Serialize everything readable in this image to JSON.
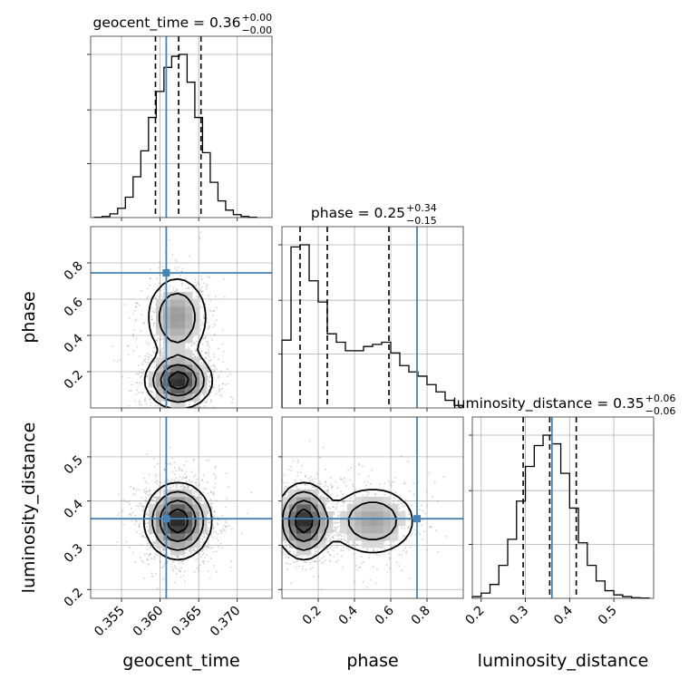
{
  "chart_data": {
    "type": "corner",
    "parameters": [
      "geocent_time",
      "phase",
      "luminosity_distance"
    ],
    "truths": {
      "geocent_time": 0.3608,
      "phase": 0.745,
      "luminosity_distance": 0.36
    },
    "colors": {
      "truth": "#4682b4",
      "line": "#000000",
      "grid": "#b0b0b0",
      "density_dark": "#111111"
    },
    "grid": true,
    "titles": [
      {
        "param": "geocent_time",
        "text": "geocent_time = 0.36",
        "sup": "+0.00",
        "sub": "−0.00"
      },
      {
        "param": "phase",
        "text": "phase = 0.25",
        "sup": "+0.34",
        "sub": "−0.15"
      },
      {
        "param": "luminosity_distance",
        "text": "luminosity_distance = 0.35",
        "sup": "+0.06",
        "sub": "−0.06"
      }
    ],
    "axes": {
      "geocent_time": {
        "label": "geocent_time",
        "range": [
          0.351,
          0.3745
        ],
        "ticks": [
          0.355,
          0.36,
          0.365,
          0.37
        ],
        "tick_labels": [
          "0.355",
          "0.360",
          "0.365",
          "0.370"
        ]
      },
      "phase": {
        "label": "phase",
        "range": [
          0.0,
          1.0
        ],
        "ticks": [
          0.2,
          0.4,
          0.6,
          0.8
        ],
        "tick_labels": [
          "0.2",
          "0.4",
          "0.6",
          "0.8"
        ]
      },
      "luminosity_distance": {
        "label": "luminosity_distance",
        "range": [
          0.18,
          0.59
        ],
        "ticks": [
          0.2,
          0.3,
          0.4,
          0.5
        ],
        "tick_labels": [
          "0.2",
          "0.3",
          "0.4",
          "0.5"
        ]
      }
    },
    "marginals": {
      "geocent_time": {
        "bin_edges": [
          0.3515,
          0.3525,
          0.3535,
          0.3545,
          0.3555,
          0.3565,
          0.3575,
          0.3585,
          0.3595,
          0.3605,
          0.3615,
          0.3625,
          0.3635,
          0.3645,
          0.3655,
          0.3665,
          0.3675,
          0.3685,
          0.3695,
          0.3705,
          0.3715,
          0.3725
        ],
        "counts": [
          1,
          3,
          10,
          25,
          55,
          110,
          180,
          270,
          340,
          405,
          435,
          440,
          365,
          270,
          175,
          95,
          45,
          20,
          8,
          3,
          1
        ],
        "quantiles": [
          0.3594,
          0.3624,
          0.3653
        ]
      },
      "phase": {
        "bin_edges": [
          0.0,
          0.05,
          0.1,
          0.15,
          0.2,
          0.25,
          0.3,
          0.35,
          0.4,
          0.45,
          0.5,
          0.55,
          0.6,
          0.65,
          0.7,
          0.75,
          0.8,
          0.85,
          0.9,
          0.95,
          1.0
        ],
        "counts": [
          160,
          380,
          385,
          300,
          250,
          175,
          155,
          135,
          135,
          145,
          150,
          155,
          130,
          100,
          85,
          75,
          55,
          38,
          18,
          6
        ],
        "quantiles": [
          0.1,
          0.25,
          0.59
        ]
      },
      "luminosity_distance": {
        "bin_edges": [
          0.18,
          0.2,
          0.22,
          0.24,
          0.26,
          0.28,
          0.3,
          0.32,
          0.34,
          0.36,
          0.38,
          0.4,
          0.42,
          0.44,
          0.46,
          0.48,
          0.5,
          0.52,
          0.54,
          0.56,
          0.58
        ],
        "counts": [
          5,
          15,
          40,
          95,
          170,
          280,
          380,
          440,
          470,
          445,
          360,
          260,
          160,
          95,
          50,
          22,
          10,
          5,
          2,
          1
        ],
        "quantiles": [
          0.295,
          0.355,
          0.415
        ]
      }
    },
    "joint": [
      {
        "x": "geocent_time",
        "y": "phase",
        "modes": [
          {
            "x": 0.3624,
            "y": 0.15,
            "sx": 0.0021,
            "sy": 0.075,
            "w": 1.0
          },
          {
            "x": 0.3622,
            "y": 0.5,
            "sx": 0.0021,
            "sy": 0.12,
            "w": 0.55
          }
        ]
      },
      {
        "x": "geocent_time",
        "y": "luminosity_distance",
        "modes": [
          {
            "x": 0.3623,
            "y": 0.355,
            "sx": 0.0021,
            "sy": 0.042,
            "w": 1.0
          }
        ]
      },
      {
        "x": "phase",
        "y": "luminosity_distance",
        "modes": [
          {
            "x": 0.12,
            "y": 0.355,
            "sx": 0.075,
            "sy": 0.042,
            "w": 1.0
          },
          {
            "x": 0.5,
            "y": 0.355,
            "sx": 0.13,
            "sy": 0.042,
            "w": 0.5
          }
        ]
      }
    ]
  }
}
